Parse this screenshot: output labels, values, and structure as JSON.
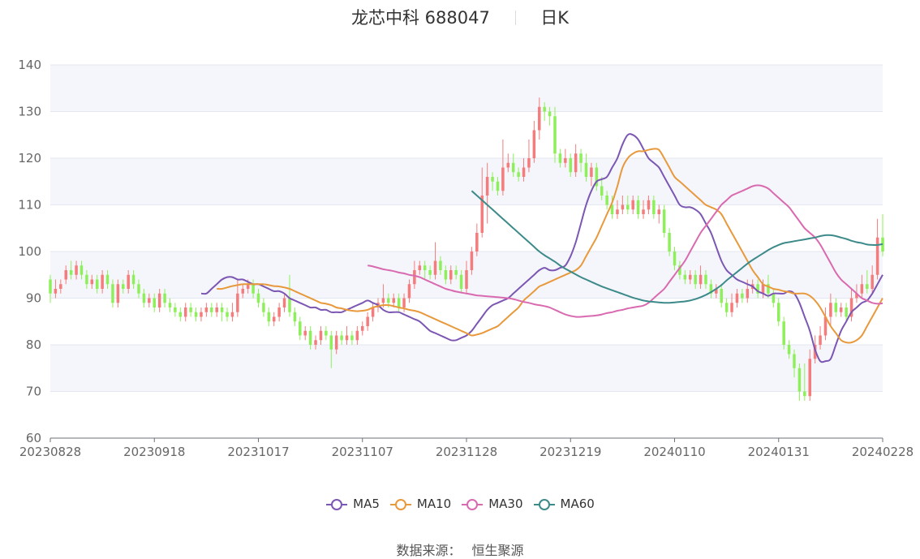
{
  "header": {
    "name": "龙芯中科",
    "code": "688047",
    "period": "日K"
  },
  "source": {
    "label": "数据来源：",
    "value": "恒生聚源"
  },
  "colors": {
    "up": "#f47c7c",
    "down": "#8df05a",
    "ma5": "#7b56b3",
    "ma10": "#e8993c",
    "ma30": "#d96ab0",
    "ma60": "#3d8a8a",
    "band": "#f5f6fb",
    "grid": "#e3e7f2"
  },
  "chart_data": {
    "type": "candlestick",
    "ylim": [
      60,
      140
    ],
    "yticks": [
      60,
      70,
      80,
      90,
      100,
      110,
      120,
      130,
      140
    ],
    "xticks": [
      "20230828",
      "20230918",
      "20231017",
      "20231107",
      "20231128",
      "20231219",
      "20240110",
      "20240131",
      "20240228"
    ],
    "legend": [
      "MA5",
      "MA10",
      "MA30",
      "MA60"
    ],
    "legend_position": "bottom",
    "grid": true,
    "candles": [
      [
        94,
        91,
        95,
        89
      ],
      [
        91,
        92,
        94,
        90
      ],
      [
        92,
        93,
        94,
        91
      ],
      [
        94,
        96,
        97,
        93
      ],
      [
        96,
        95,
        98,
        94
      ],
      [
        95,
        97,
        98,
        94
      ],
      [
        97,
        95,
        98,
        94
      ],
      [
        95,
        93,
        96,
        92
      ],
      [
        93,
        94,
        95,
        92
      ],
      [
        94,
        92,
        95,
        91
      ],
      [
        92,
        95,
        96,
        91
      ],
      [
        95,
        93,
        96,
        92
      ],
      [
        93,
        89,
        94,
        88
      ],
      [
        89,
        93,
        94,
        88
      ],
      [
        93,
        92,
        94,
        91
      ],
      [
        92,
        95,
        96,
        91
      ],
      [
        95,
        93,
        96,
        92
      ],
      [
        93,
        91,
        94,
        90
      ],
      [
        91,
        89,
        92,
        88
      ],
      [
        89,
        90,
        91,
        88
      ],
      [
        90,
        88,
        91,
        87
      ],
      [
        88,
        91,
        92,
        87
      ],
      [
        91,
        89,
        92,
        88
      ],
      [
        89,
        88,
        90,
        87
      ],
      [
        88,
        87,
        89,
        86
      ],
      [
        87,
        86,
        88,
        85
      ],
      [
        86,
        88,
        89,
        85
      ],
      [
        88,
        87,
        89,
        86
      ],
      [
        87,
        86,
        88,
        85
      ],
      [
        86,
        87,
        88,
        85
      ],
      [
        87,
        88,
        89,
        86
      ],
      [
        88,
        87,
        89,
        86
      ],
      [
        87,
        88,
        89,
        86
      ],
      [
        88,
        87,
        89,
        85
      ],
      [
        87,
        86,
        88,
        85
      ],
      [
        86,
        87,
        89,
        85
      ],
      [
        87,
        91,
        94,
        86
      ],
      [
        91,
        92,
        93,
        90
      ],
      [
        92,
        93,
        94,
        91
      ],
      [
        93,
        91,
        94,
        90
      ],
      [
        91,
        89,
        92,
        88
      ],
      [
        89,
        87,
        90,
        86
      ],
      [
        87,
        85,
        88,
        84
      ],
      [
        85,
        86,
        87,
        84
      ],
      [
        86,
        88,
        89,
        85
      ],
      [
        88,
        90,
        91,
        87
      ],
      [
        90,
        87,
        95,
        86
      ],
      [
        87,
        85,
        88,
        84
      ],
      [
        85,
        82,
        86,
        81
      ],
      [
        82,
        83,
        84,
        81
      ],
      [
        83,
        80,
        84,
        79
      ],
      [
        80,
        81,
        82,
        79
      ],
      [
        81,
        83,
        84,
        80
      ],
      [
        83,
        82,
        84,
        81
      ],
      [
        82,
        79,
        83,
        75
      ],
      [
        79,
        82,
        83,
        78
      ],
      [
        82,
        81,
        83,
        80
      ],
      [
        81,
        82,
        84,
        80
      ],
      [
        82,
        81,
        83,
        80
      ],
      [
        81,
        83,
        84,
        80
      ],
      [
        83,
        84,
        85,
        82
      ],
      [
        84,
        86,
        87,
        83
      ],
      [
        86,
        88,
        89,
        85
      ],
      [
        88,
        89,
        90,
        87
      ],
      [
        89,
        90,
        93,
        88
      ],
      [
        90,
        89,
        91,
        88
      ],
      [
        89,
        90,
        91,
        88
      ],
      [
        90,
        88,
        91,
        87
      ],
      [
        88,
        90,
        91,
        87
      ],
      [
        90,
        93,
        94,
        89
      ],
      [
        93,
        96,
        98,
        92
      ],
      [
        96,
        97,
        98,
        95
      ],
      [
        97,
        96,
        98,
        94
      ],
      [
        96,
        95,
        97,
        94
      ],
      [
        95,
        98,
        102,
        94
      ],
      [
        98,
        96,
        99,
        95
      ],
      [
        96,
        94,
        97,
        93
      ],
      [
        94,
        96,
        97,
        93
      ],
      [
        96,
        95,
        97,
        94
      ],
      [
        95,
        92,
        96,
        91
      ],
      [
        92,
        96,
        98,
        91
      ],
      [
        96,
        100,
        101,
        95
      ],
      [
        100,
        104,
        106,
        99
      ],
      [
        104,
        112,
        118,
        103
      ],
      [
        112,
        116,
        119,
        106
      ],
      [
        116,
        115,
        117,
        113
      ],
      [
        115,
        113,
        116,
        112
      ],
      [
        113,
        118,
        124,
        112
      ],
      [
        118,
        119,
        121,
        117
      ],
      [
        119,
        117,
        121,
        116
      ],
      [
        117,
        116,
        118,
        115
      ],
      [
        116,
        118,
        120,
        115
      ],
      [
        118,
        120,
        124,
        117
      ],
      [
        120,
        126,
        128,
        119
      ],
      [
        126,
        131,
        133,
        124
      ],
      [
        131,
        130,
        132,
        128
      ],
      [
        130,
        129,
        131,
        127
      ],
      [
        129,
        121,
        131,
        119
      ],
      [
        121,
        119,
        122,
        118
      ],
      [
        119,
        120,
        122,
        118
      ],
      [
        120,
        117,
        121,
        116
      ],
      [
        117,
        121,
        123,
        116
      ],
      [
        121,
        119,
        122,
        117
      ],
      [
        119,
        116,
        121,
        115
      ],
      [
        116,
        118,
        119,
        114
      ],
      [
        118,
        114,
        119,
        113
      ],
      [
        114,
        112,
        116,
        111
      ],
      [
        112,
        110,
        113,
        109
      ],
      [
        110,
        108,
        112,
        107
      ],
      [
        108,
        109,
        111,
        107
      ],
      [
        109,
        110,
        112,
        108
      ],
      [
        110,
        109,
        112,
        108
      ],
      [
        109,
        111,
        112,
        108
      ],
      [
        111,
        108,
        112,
        107
      ],
      [
        108,
        109,
        111,
        107
      ],
      [
        109,
        111,
        112,
        108
      ],
      [
        111,
        108,
        112,
        107
      ],
      [
        108,
        109,
        110,
        106
      ],
      [
        109,
        104,
        110,
        103
      ],
      [
        104,
        100,
        105,
        99
      ],
      [
        100,
        97,
        101,
        96
      ],
      [
        97,
        95,
        98,
        94
      ],
      [
        95,
        94,
        96,
        93
      ],
      [
        94,
        95,
        96,
        93
      ],
      [
        95,
        93,
        96,
        92
      ],
      [
        93,
        95,
        97,
        92
      ],
      [
        95,
        93,
        96,
        92
      ],
      [
        93,
        91,
        94,
        90
      ],
      [
        91,
        92,
        93,
        90
      ],
      [
        92,
        89,
        93,
        88
      ],
      [
        89,
        87,
        90,
        86
      ],
      [
        87,
        89,
        91,
        86
      ],
      [
        89,
        91,
        92,
        88
      ],
      [
        91,
        90,
        92,
        89
      ],
      [
        90,
        92,
        94,
        89
      ],
      [
        92,
        93,
        94,
        91
      ],
      [
        93,
        91,
        94,
        90
      ],
      [
        91,
        93,
        94,
        90
      ],
      [
        93,
        91,
        95,
        90
      ],
      [
        91,
        89,
        92,
        88
      ],
      [
        89,
        85,
        90,
        84
      ],
      [
        85,
        80,
        86,
        79
      ],
      [
        80,
        78,
        81,
        77
      ],
      [
        78,
        75,
        79,
        73
      ],
      [
        75,
        70,
        76,
        68
      ],
      [
        70,
        69,
        76,
        68
      ],
      [
        69,
        77,
        79,
        68
      ],
      [
        77,
        80,
        82,
        76
      ],
      [
        80,
        82,
        84,
        79
      ],
      [
        82,
        86,
        88,
        81
      ],
      [
        86,
        89,
        91,
        84
      ],
      [
        89,
        87,
        90,
        86
      ],
      [
        87,
        88,
        89,
        86
      ],
      [
        88,
        86,
        89,
        85
      ],
      [
        86,
        90,
        92,
        85
      ],
      [
        90,
        91,
        93,
        89
      ],
      [
        91,
        93,
        95,
        90
      ],
      [
        93,
        92,
        96,
        91
      ],
      [
        92,
        95,
        97,
        91
      ],
      [
        95,
        103,
        107,
        94
      ],
      [
        103,
        100,
        108,
        99
      ]
    ],
    "ma5": [
      91,
      91,
      92,
      93,
      94,
      94.5,
      94.5,
      94,
      94,
      93.5,
      93,
      93,
      92.5,
      92,
      91.5,
      91.5,
      91,
      90,
      89.5,
      89,
      88.5,
      88,
      88,
      87.5,
      87.5,
      87,
      87,
      87,
      87.5,
      88,
      88.5,
      89,
      89.5,
      89,
      88.5,
      87.5,
      87,
      87,
      87,
      86.5,
      86,
      85.5,
      85,
      84,
      83,
      82.5,
      82,
      81.5,
      81,
      81,
      81.5,
      82,
      83,
      84.5,
      86,
      87.5,
      88.5,
      89,
      89.5,
      90,
      91,
      92,
      93,
      94,
      95,
      96,
      96.5,
      96,
      96,
      96.5,
      97,
      99,
      102,
      106,
      110,
      113,
      115,
      115.5,
      116,
      118,
      120,
      123,
      125,
      125,
      124,
      122,
      120,
      119,
      118,
      116,
      114,
      112,
      110,
      109.5,
      109.5,
      109,
      108,
      106,
      104,
      101,
      98,
      96,
      95,
      94,
      93.5,
      93,
      92.5,
      91.5,
      91,
      90.5,
      91,
      91,
      91,
      91.5,
      91,
      89,
      86,
      83,
      79,
      76.5,
      76.5,
      77,
      80,
      83,
      85,
      87,
      88,
      89,
      89.5,
      91,
      93,
      95
    ],
    "ma10": [
      92,
      92,
      92.3,
      92.6,
      92.8,
      93,
      93,
      93,
      93,
      93,
      92.8,
      92.6,
      92.5,
      92.3,
      92,
      91.5,
      91,
      90.5,
      90,
      89.5,
      89,
      88.8,
      88.5,
      88,
      87.8,
      87.5,
      87.3,
      87.2,
      87.3,
      87.5,
      88,
      88.3,
      88.5,
      88.5,
      88.3,
      88,
      87.8,
      87.5,
      87.3,
      87,
      86.5,
      86,
      85.5,
      85,
      84.5,
      84,
      83.5,
      83,
      82.5,
      82,
      82.2,
      82.5,
      83,
      83.5,
      84,
      85,
      86,
      87,
      88,
      89.5,
      90.5,
      91.5,
      92.5,
      93,
      93.5,
      94,
      94.5,
      95,
      95.5,
      96,
      97,
      99,
      101,
      103,
      105.5,
      108,
      110.5,
      114,
      118,
      120,
      121,
      121.5,
      121.5,
      121.8,
      122,
      121.8,
      120,
      118,
      116,
      115,
      114,
      113,
      112,
      111,
      110,
      109.5,
      109,
      108,
      106,
      104,
      102,
      100,
      98,
      96,
      94.5,
      93,
      92.5,
      92,
      91.8,
      91.5,
      91.3,
      91,
      91,
      91,
      90.5,
      89.5,
      88,
      86,
      84,
      82.5,
      81,
      80.5,
      80.5,
      81,
      82,
      84,
      86,
      88,
      90
    ],
    "ma30": [
      97,
      96.8,
      96.5,
      96.2,
      96,
      95.8,
      95.5,
      95.3,
      95,
      94.8,
      94.5,
      94,
      93.5,
      93,
      92.5,
      92,
      91.7,
      91.4,
      91.2,
      91,
      90.8,
      90.6,
      90.5,
      90.4,
      90.3,
      90.2,
      90.1,
      90,
      89.8,
      89.5,
      89.2,
      89,
      88.7,
      88.5,
      88.3,
      88,
      87.5,
      87,
      86.5,
      86.2,
      86,
      86,
      86.1,
      86.2,
      86.3,
      86.5,
      86.8,
      87,
      87.3,
      87.5,
      87.8,
      88,
      88.2,
      88.4,
      89,
      90,
      91,
      92,
      93.5,
      95,
      96.5,
      98,
      100,
      102,
      104,
      105.5,
      107,
      108.5,
      110,
      111,
      112,
      112.5,
      113,
      113.5,
      114,
      114.2,
      114,
      113.5,
      112.5,
      111.5,
      110.5,
      109.5,
      108,
      106.5,
      105,
      104,
      103,
      101.5,
      99.5,
      97.5,
      95.5,
      94,
      93,
      92,
      91,
      90,
      89.5,
      89,
      88.8,
      88.9
    ],
    "ma60": [
      113,
      112,
      111,
      110,
      109,
      108,
      107,
      106,
      105,
      104,
      103,
      102,
      101,
      100,
      99.2,
      98.5,
      97.8,
      97,
      96.3,
      95.7,
      95.1,
      94.5,
      94,
      93.5,
      93,
      92.5,
      92.1,
      91.7,
      91.3,
      90.9,
      90.5,
      90.1,
      89.8,
      89.5,
      89.3,
      89.2,
      89.1,
      89,
      89,
      89.1,
      89.2,
      89.3,
      89.5,
      89.8,
      90.2,
      90.7,
      91.3,
      92,
      92.8,
      93.8,
      94.7,
      95.6,
      96.5,
      97.4,
      98.2,
      98.9,
      99.6,
      100.3,
      100.9,
      101.4,
      101.8,
      102,
      102.2,
      102.4,
      102.6,
      102.8,
      103,
      103.3,
      103.5,
      103.5,
      103.3,
      103,
      102.7,
      102.3,
      102,
      101.8,
      101.5,
      101.4,
      101.4,
      101.6
    ]
  }
}
